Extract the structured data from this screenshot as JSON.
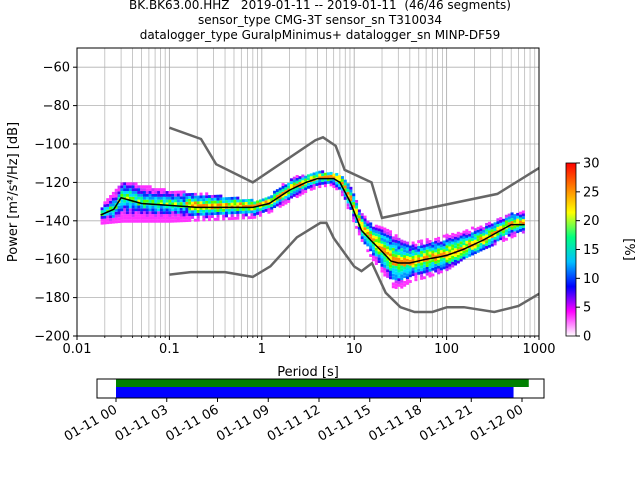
{
  "titles": [
    "BK.BK63.00.HHZ   2019-01-11 -- 2019-01-11  (46/46 segments)",
    "sensor_type CMG-3T sensor_sn T310034",
    "datalogger_type GuralpMinimus+ datalogger_sn MINP-DF59"
  ],
  "chart_data": [
    {
      "type": "heatmap",
      "xlabel": "Period [s]",
      "ylabel": "Power [m²/s⁴/Hz] [dB]",
      "xscale": "log",
      "xlim": [
        0.01,
        1000
      ],
      "ylim": [
        -200,
        -50
      ],
      "xticks": [
        0.01,
        0.1,
        1,
        10,
        100,
        1000
      ],
      "xtick_labels": [
        "0.01",
        "0.1",
        "1",
        "10",
        "100",
        "1000"
      ],
      "yticks": [
        -200,
        -180,
        -160,
        -140,
        -120,
        -100,
        -80,
        -60
      ],
      "ytick_labels": [
        "−200",
        "−180",
        "−160",
        "−140",
        "−120",
        "−100",
        "−80",
        "−60"
      ],
      "grid": true,
      "colorbar": {
        "label": "[%]",
        "range": [
          0,
          30
        ],
        "ticks": [
          0,
          5,
          10,
          15,
          20,
          25,
          30
        ],
        "tick_labels": [
          "0",
          "5",
          "10",
          "15",
          "20",
          "25",
          "30"
        ],
        "colormap": [
          "#ffffff",
          "#ff00ff",
          "#0000ff",
          "#00c0ff",
          "#00ff80",
          "#ffff00",
          "#ff8000",
          "#ff0000"
        ]
      },
      "series": [
        {
          "role": "median PSD",
          "color": "#000000",
          "x": [
            0.018,
            0.025,
            0.03,
            0.05,
            0.1,
            0.2,
            0.5,
            0.8,
            1.2,
            2,
            3,
            4,
            5,
            6,
            7,
            9,
            12,
            15,
            20,
            25,
            30,
            40,
            60,
            80,
            100,
            150,
            250,
            500,
            700
          ],
          "y": [
            -137,
            -134,
            -128,
            -131,
            -132,
            -133,
            -133,
            -133,
            -131,
            -124,
            -120,
            -118,
            -118,
            -118,
            -120,
            -130,
            -145,
            -150,
            -156,
            -161,
            -162,
            -162,
            -160,
            -159,
            -158,
            -155,
            -150,
            -142,
            -142
          ]
        },
        {
          "role": "high noise model",
          "color": "#666666",
          "x": [
            0.1,
            0.22,
            0.32,
            0.8,
            3.8,
            4.6,
            6.3,
            7.9,
            15.4,
            20,
            354.8,
            1000
          ],
          "y": [
            -91.5,
            -97.4,
            -110.5,
            -120,
            -98,
            -96.5,
            -101,
            -113.5,
            -120,
            -138.5,
            -126,
            -112.5
          ]
        },
        {
          "role": "low noise model",
          "color": "#666666",
          "x": [
            0.1,
            0.17,
            0.4,
            0.8,
            1.24,
            2.4,
            4.3,
            5,
            6,
            10,
            12,
            15.6,
            21.9,
            31.6,
            45,
            70,
            101,
            154,
            328,
            600,
            1000
          ],
          "y": [
            -168,
            -166.7,
            -166.7,
            -169.2,
            -163.7,
            -148.6,
            -141.1,
            -141.1,
            -149,
            -163.8,
            -166.2,
            -162.1,
            -177.5,
            -185,
            -187.5,
            -187.5,
            -185,
            -185,
            -187.5,
            -184.4,
            -178
          ]
        }
      ],
      "density_bands": [
        {
          "x": [
            0.018,
            0.03,
            0.05,
            0.1,
            0.3,
            0.8,
            1.2,
            2,
            3,
            4,
            5.5,
            7,
            9,
            12,
            15,
            20,
            25,
            30,
            40,
            60,
            100,
            150,
            250,
            500,
            700
          ],
          "ylow": [
            -142,
            -141,
            -141,
            -141,
            -140,
            -139,
            -136,
            -130,
            -125,
            -123,
            -122,
            -126,
            -138,
            -152,
            -160,
            -168,
            -175,
            -176,
            -172,
            -170,
            -166,
            -160,
            -155,
            -149,
            -146
          ],
          "yhigh": [
            -133,
            -120,
            -122,
            -125,
            -127,
            -130,
            -127,
            -118,
            -116,
            -115,
            -115,
            -117,
            -123,
            -137,
            -140,
            -144,
            -146,
            -150,
            -152,
            -150,
            -148,
            -146,
            -142,
            -136,
            -136
          ]
        }
      ]
    },
    {
      "type": "timeline",
      "xlim": [
        "2019-01-11 00:00",
        "2019-01-12 00:00"
      ],
      "xtick_labels": [
        "01-11 00",
        "01-11 03",
        "01-11 06",
        "01-11 09",
        "01-11 12",
        "01-11 15",
        "01-11 18",
        "01-11 21",
        "01-12 00"
      ],
      "bars": [
        {
          "color": "#008000",
          "start_hour": 0,
          "end_hour": 24.4
        },
        {
          "color": "#0000ff",
          "start_hour": 0,
          "end_hour": 23.5
        }
      ]
    }
  ]
}
